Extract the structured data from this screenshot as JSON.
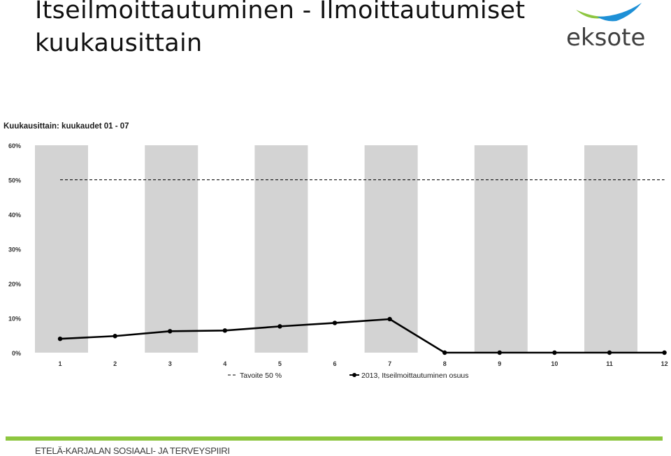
{
  "slide": {
    "title_line1": "Itseilmoittautuminen - Ilmoittautumiset",
    "title_line2": "kuukausittain"
  },
  "logo": {
    "text": "eksote",
    "text_color": "#404040",
    "swoosh_colors": [
      "#8dc63f",
      "#1e90d6"
    ]
  },
  "footer": {
    "text": "ETELÄ-KARJALAN SOSIAALI- JA TERVEYSPIIRI",
    "bar_color": "#8dc63f"
  },
  "chart_data": {
    "type": "line",
    "title": "Kuukausittain: kuukaudet 01 - 07",
    "categories": [
      "1",
      "2",
      "3",
      "4",
      "5",
      "6",
      "7",
      "8",
      "9",
      "10",
      "11",
      "12"
    ],
    "y_ticks": [
      "0%",
      "10%",
      "20%",
      "30%",
      "40%",
      "50%",
      "60%"
    ],
    "ylim": [
      0,
      60
    ],
    "y_unit": "%",
    "series": [
      {
        "name": "2013, Itseilmoittautuminen osuus",
        "values": [
          4,
          4.8,
          6.2,
          6.4,
          7.6,
          8.6,
          9.7,
          0,
          0,
          0,
          0,
          0
        ],
        "color": "#000000",
        "style": "solid-with-markers"
      },
      {
        "name": "Tavoite 50 %",
        "values": [
          50,
          50,
          50,
          50,
          50,
          50,
          50,
          50,
          50,
          50,
          50,
          50
        ],
        "color": "#000000",
        "style": "dashed"
      }
    ],
    "band_color": "#d3d3d3",
    "banded_categories": [
      "1",
      "3",
      "5",
      "7",
      "9",
      "11"
    ],
    "legend_position": "bottom"
  }
}
